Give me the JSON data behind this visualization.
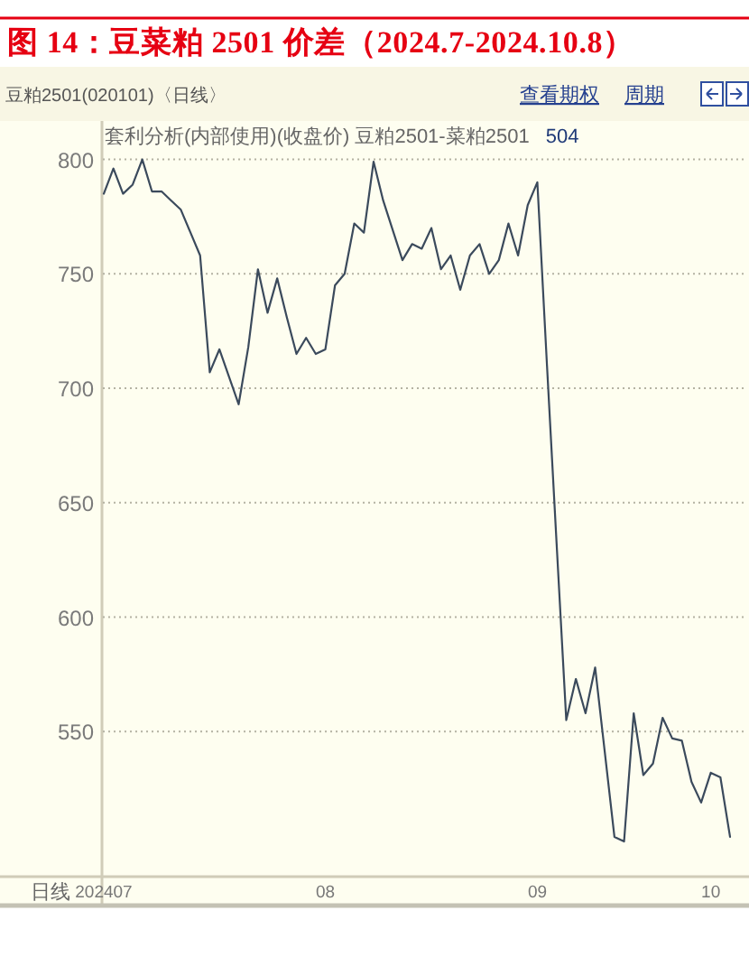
{
  "chart_data": {
    "type": "line",
    "title": "图 14：豆菜粕 2501 价差（2024.7-2024.10.8）",
    "subtitle": "豆粕2501(020101)〈日线〉",
    "xlabel": "日线",
    "annotations": [
      "套利分析(内部使用)(收盘价) 豆粕2501-菜粕2501",
      "504",
      "查看期权",
      "周期"
    ],
    "categories": [
      "202407",
      null,
      null,
      null,
      null,
      null,
      null,
      null,
      null,
      null,
      null,
      null,
      null,
      null,
      null,
      null,
      null,
      null,
      null,
      null,
      null,
      null,
      null,
      "08",
      null,
      null,
      null,
      null,
      null,
      null,
      null,
      null,
      null,
      null,
      null,
      null,
      null,
      null,
      null,
      null,
      null,
      null,
      null,
      null,
      null,
      "09",
      null,
      null,
      null,
      null,
      null,
      null,
      null,
      null,
      null,
      null,
      null,
      null,
      null,
      null,
      null,
      null,
      null,
      "10",
      null,
      null
    ],
    "series": [
      {
        "color": "#3b4a5c",
        "values": [
          785,
          796,
          785,
          789,
          800,
          786,
          786,
          782,
          778,
          768,
          758,
          707,
          717,
          705,
          693,
          718,
          752,
          733,
          748,
          731,
          715,
          722,
          715,
          717,
          745,
          750,
          772,
          768,
          799,
          782,
          769,
          756,
          763,
          761,
          770,
          752,
          758,
          743,
          758,
          763,
          750,
          756,
          772,
          758,
          780,
          790,
          710,
          632,
          555,
          573,
          558,
          578,
          541,
          504,
          502,
          558,
          531,
          536,
          556,
          547,
          546,
          528,
          519,
          532,
          530,
          504
        ]
      }
    ],
    "ylim": [
      487,
      816
    ],
    "yticks": [
      550,
      600,
      650,
      700,
      750,
      800
    ],
    "grid": "y"
  }
}
